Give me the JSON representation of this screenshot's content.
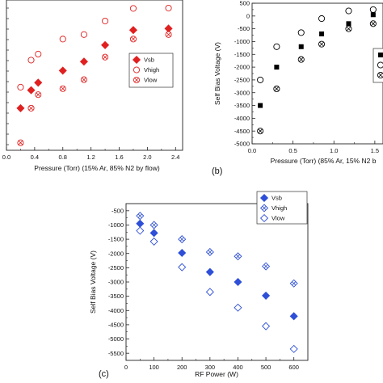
{
  "chart_data": [
    {
      "type": "scatter",
      "panel": "",
      "xlabel": "Pressure (Torr) (15% Ar, 85% N2 by flow)",
      "ylabel": "",
      "xlim": [
        0.0,
        2.5
      ],
      "ylim": [
        -4700,
        300
      ],
      "x_ticks": [
        0.0,
        0.4,
        0.8,
        1.2,
        1.6,
        2.0,
        2.4
      ],
      "x_tick_labels": [
        "0.0",
        "0.4",
        "0.8",
        "1.2",
        "1.6",
        "2.0",
        "2.4"
      ],
      "color": "#e02020",
      "legend": {
        "position": "right",
        "entries": [
          "Vsb",
          "Vhigh",
          "Vlow"
        ]
      },
      "series": [
        {
          "name": "Vsb",
          "marker": "diamond-filled",
          "x": [
            0.2,
            0.35,
            0.45,
            0.8,
            1.1,
            1.4,
            1.8,
            2.3
          ],
          "y": [
            -3300,
            -2700,
            -2450,
            -2050,
            -1750,
            -1200,
            -700,
            -650
          ]
        },
        {
          "name": "Vhigh",
          "marker": "circle-open",
          "x": [
            0.2,
            0.35,
            0.45,
            0.8,
            1.1,
            1.4,
            1.8,
            2.3
          ],
          "y": [
            -2600,
            -1700,
            -1500,
            -1000,
            -850,
            -400,
            20,
            30
          ]
        },
        {
          "name": "Vlow",
          "marker": "circle-x",
          "x": [
            0.2,
            0.35,
            0.45,
            0.8,
            1.1,
            1.4,
            1.8,
            2.3
          ],
          "y": [
            -4450,
            -3300,
            -2850,
            -2650,
            -2350,
            -1600,
            -1000,
            -850
          ]
        }
      ]
    },
    {
      "type": "scatter",
      "panel": "(b)",
      "xlabel": "Pressure (Torr) (85% Ar, 15% N2 b",
      "ylabel": "Self Bias Voltage (V)",
      "xlim": [
        0.0,
        1.6
      ],
      "ylim": [
        -5000,
        500
      ],
      "x_ticks": [
        0.0,
        0.5,
        1.0,
        1.5
      ],
      "x_tick_labels": [
        "0.0",
        "0.5",
        "1.0",
        "1.5"
      ],
      "y_ticks": [
        500,
        0,
        -500,
        -1000,
        -1500,
        -2000,
        -2500,
        -3000,
        -3500,
        -4000,
        -4500,
        -5000
      ],
      "y_tick_labels": [
        "500",
        "0",
        "-500",
        "-1000",
        "-1500",
        "-2000",
        "-2500",
        "-3000",
        "-3500",
        "-4000",
        "-4500",
        "-5000"
      ],
      "color": "#000000",
      "legend": {
        "position": "right",
        "entries": [
          "",
          "",
          ""
        ]
      },
      "series": [
        {
          "name": "",
          "marker": "square-filled",
          "x": [
            0.1,
            0.3,
            0.6,
            0.85,
            1.18,
            1.48
          ],
          "y": [
            -3500,
            -2000,
            -1200,
            -700,
            -300,
            50
          ]
        },
        {
          "name": "",
          "marker": "circle-open",
          "x": [
            0.1,
            0.3,
            0.6,
            0.85,
            1.18,
            1.48
          ],
          "y": [
            -2500,
            -1200,
            -650,
            -100,
            200,
            250
          ]
        },
        {
          "name": "",
          "marker": "circle-x",
          "x": [
            0.1,
            0.3,
            0.6,
            0.85,
            1.18,
            1.48
          ],
          "y": [
            -4500,
            -2850,
            -1700,
            -1100,
            -500,
            -300
          ]
        }
      ]
    },
    {
      "type": "scatter",
      "panel": "(c)",
      "xlabel": "RF Power (W)",
      "ylabel": "Self Bias Voltage (V)",
      "xlim": [
        0,
        650
      ],
      "ylim": [
        -5750,
        -250
      ],
      "x_ticks": [
        0,
        100,
        200,
        300,
        400,
        500,
        600
      ],
      "x_tick_labels": [
        "0",
        "100",
        "200",
        "300",
        "400",
        "500",
        "600"
      ],
      "y_ticks": [
        -500,
        -1000,
        -1500,
        -2000,
        -2500,
        -3000,
        -3500,
        -4000,
        -4500,
        -5000,
        -5500
      ],
      "y_tick_labels": [
        "-500",
        "-1000",
        "-1500",
        "-2000",
        "-2500",
        "-3000",
        "-3500",
        "-4000",
        "-4500",
        "-5000",
        "-5500"
      ],
      "color": "#2e4fd8",
      "legend": {
        "position": "top-right",
        "entries": [
          "Vsb",
          "Vhigh",
          "Vlow"
        ]
      },
      "series": [
        {
          "name": "Vsb",
          "marker": "diamond-filled",
          "x": [
            50,
            100,
            200,
            300,
            400,
            500,
            600
          ],
          "y": [
            -950,
            -1280,
            -1980,
            -2650,
            -3000,
            -3480,
            -4200
          ]
        },
        {
          "name": "Vhigh",
          "marker": "diamond-x",
          "x": [
            50,
            100,
            200,
            300,
            400,
            500,
            600
          ],
          "y": [
            -680,
            -1000,
            -1500,
            -1950,
            -2100,
            -2450,
            -3050
          ]
        },
        {
          "name": "Vlow",
          "marker": "diamond-open",
          "x": [
            50,
            100,
            200,
            300,
            400,
            500,
            600
          ],
          "y": [
            -1200,
            -1580,
            -2480,
            -3350,
            -3900,
            -4550,
            -5350
          ]
        }
      ]
    }
  ]
}
